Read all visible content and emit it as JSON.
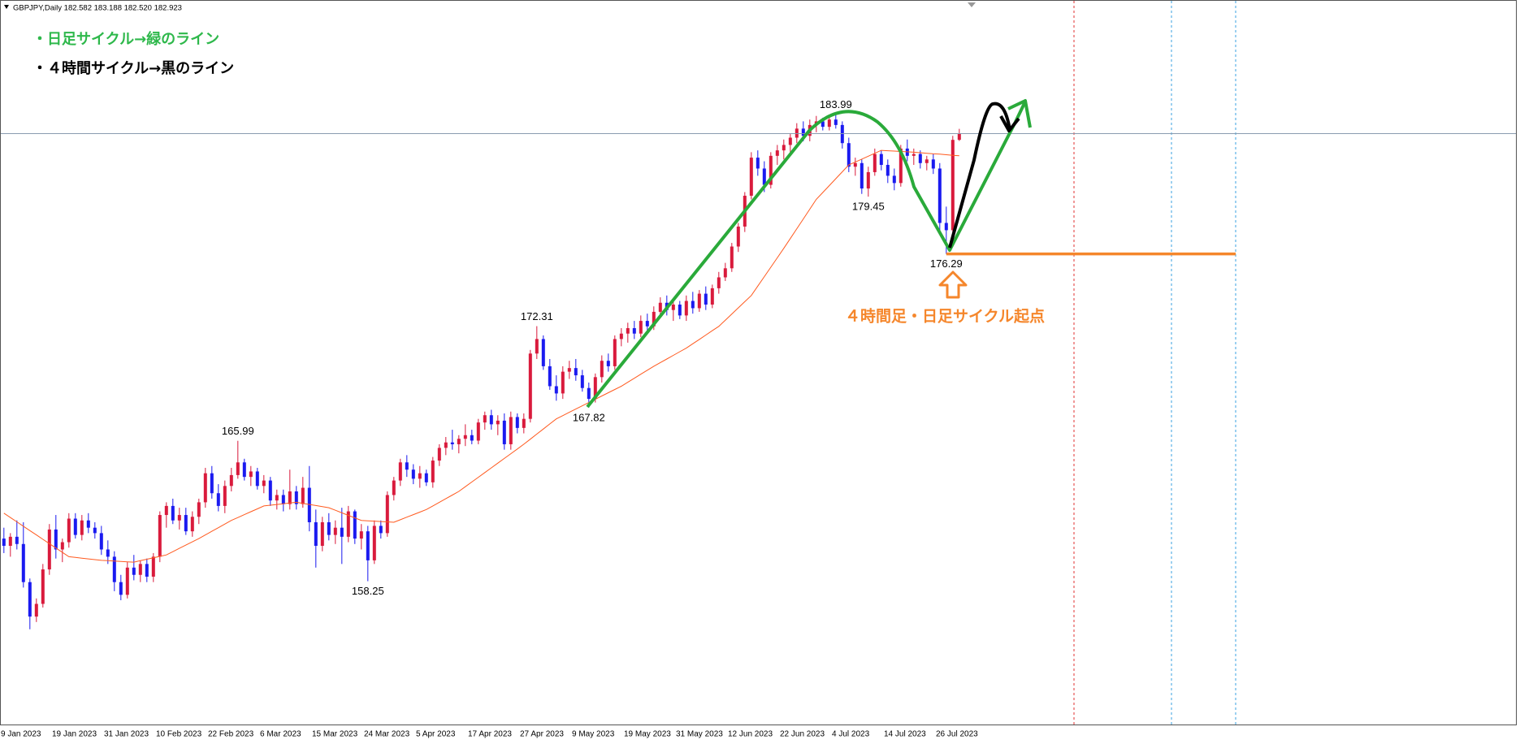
{
  "chart_data": {
    "type": "candlestick",
    "header": "GBPJPY,Daily  182.582 183.188 182.520 182.923",
    "notes": [
      "・日足サイクル→緑のライン",
      "・４時間サイクル→黒のライン"
    ],
    "callout": "４時間足・日足サイクル起点",
    "up_color": "#d91a3c",
    "down_color": "#1a1af0",
    "ylim": [
      150.35,
      190.29
    ],
    "categories": [
      "9 Jan 2023",
      null,
      null,
      null,
      null,
      null,
      null,
      null,
      "19 Jan 2023",
      null,
      null,
      null,
      null,
      null,
      null,
      null,
      "31 Jan 2023",
      null,
      null,
      null,
      null,
      null,
      null,
      null,
      "10 Feb 2023",
      null,
      null,
      null,
      null,
      null,
      null,
      null,
      "22 Feb 2023",
      null,
      null,
      null,
      null,
      null,
      null,
      null,
      "6 Mar 2023",
      null,
      null,
      null,
      null,
      null,
      null,
      null,
      "15 Mar 2023",
      null,
      null,
      null,
      null,
      null,
      null,
      null,
      "24 Mar 2023",
      null,
      null,
      null,
      null,
      null,
      null,
      null,
      "5 Apr 2023",
      null,
      null,
      null,
      null,
      null,
      null,
      null,
      "17 Apr 2023",
      null,
      null,
      null,
      null,
      null,
      null,
      null,
      "27 Apr 2023",
      null,
      null,
      null,
      null,
      null,
      null,
      null,
      "9 May 2023",
      null,
      null,
      null,
      null,
      null,
      null,
      null,
      "19 May 2023",
      null,
      null,
      null,
      null,
      null,
      null,
      null,
      "31 May 2023",
      null,
      null,
      null,
      null,
      null,
      null,
      null,
      "12 Jun 2023",
      null,
      null,
      null,
      null,
      null,
      null,
      null,
      "22 Jun 2023",
      null,
      null,
      null,
      null,
      null,
      null,
      null,
      "4 Jul 2023",
      null,
      null,
      null,
      null,
      null,
      null,
      null,
      "14 Jul 2023",
      null,
      null,
      null,
      null,
      null,
      null,
      null,
      "26 Jul 2023",
      null,
      null,
      null
    ],
    "ohlc": [
      [
        160.6,
        161.2,
        159.8,
        160.2
      ],
      [
        160.2,
        160.9,
        159.6,
        160.7
      ],
      [
        160.7,
        161.6,
        160.0,
        160.3
      ],
      [
        160.3,
        161.5,
        157.9,
        158.2
      ],
      [
        158.2,
        158.4,
        155.6,
        156.3
      ],
      [
        156.3,
        157.3,
        156.0,
        157.0
      ],
      [
        157.0,
        159.2,
        156.8,
        158.9
      ],
      [
        158.9,
        161.4,
        158.6,
        161.1
      ],
      [
        161.1,
        161.9,
        159.5,
        160.0
      ],
      [
        160.0,
        160.6,
        159.3,
        160.4
      ],
      [
        160.4,
        162.0,
        160.1,
        161.7
      ],
      [
        161.7,
        162.0,
        160.6,
        160.8
      ],
      [
        160.8,
        161.9,
        160.5,
        161.6
      ],
      [
        161.6,
        162.0,
        160.9,
        161.2
      ],
      [
        161.2,
        161.5,
        160.6,
        160.9
      ],
      [
        160.9,
        161.3,
        159.7,
        160.0
      ],
      [
        160.0,
        160.5,
        159.2,
        159.6
      ],
      [
        159.6,
        159.9,
        157.7,
        158.2
      ],
      [
        158.2,
        158.6,
        157.2,
        157.5
      ],
      [
        157.5,
        159.3,
        157.3,
        159.0
      ],
      [
        159.0,
        159.7,
        158.3,
        158.6
      ],
      [
        158.6,
        159.4,
        158.2,
        159.2
      ],
      [
        159.2,
        159.5,
        158.2,
        158.5
      ],
      [
        158.5,
        159.8,
        158.2,
        159.6
      ],
      [
        159.6,
        162.1,
        159.3,
        161.9
      ],
      [
        161.9,
        162.6,
        161.2,
        162.4
      ],
      [
        162.4,
        162.8,
        161.4,
        161.6
      ],
      [
        161.6,
        162.3,
        161.1,
        161.9
      ],
      [
        161.9,
        162.3,
        160.8,
        161.0
      ],
      [
        161.0,
        162.1,
        160.7,
        161.8
      ],
      [
        161.8,
        162.8,
        161.4,
        162.6
      ],
      [
        162.6,
        164.5,
        162.3,
        164.2
      ],
      [
        164.2,
        164.6,
        162.8,
        163.1
      ],
      [
        163.1,
        163.6,
        162.1,
        162.4
      ],
      [
        162.4,
        163.8,
        162.0,
        163.5
      ],
      [
        163.5,
        164.5,
        163.2,
        164.1
      ],
      [
        164.1,
        165.99,
        163.9,
        164.8
      ],
      [
        164.8,
        165.0,
        163.8,
        164.0
      ],
      [
        164.0,
        164.6,
        163.5,
        164.3
      ],
      [
        164.3,
        164.5,
        163.3,
        163.5
      ],
      [
        163.5,
        164.1,
        163.1,
        163.8
      ],
      [
        163.8,
        164.0,
        162.4,
        162.7
      ],
      [
        162.7,
        163.3,
        162.2,
        163.0
      ],
      [
        163.0,
        163.3,
        162.1,
        162.5
      ],
      [
        162.5,
        164.4,
        162.2,
        163.2
      ],
      [
        163.2,
        163.5,
        162.2,
        162.5
      ],
      [
        162.5,
        164.0,
        162.3,
        163.4
      ],
      [
        163.4,
        164.6,
        161.0,
        161.5
      ],
      [
        161.5,
        162.2,
        159.0,
        160.2
      ],
      [
        160.2,
        161.8,
        159.9,
        161.5
      ],
      [
        161.5,
        162.0,
        160.5,
        160.8
      ],
      [
        160.8,
        161.6,
        160.3,
        161.2
      ],
      [
        161.2,
        162.3,
        159.2,
        160.7
      ],
      [
        160.7,
        162.4,
        160.4,
        162.1
      ],
      [
        162.1,
        162.2,
        160.3,
        160.6
      ],
      [
        160.6,
        161.4,
        160.0,
        161.0
      ],
      [
        161.0,
        161.3,
        158.25,
        159.4
      ],
      [
        159.4,
        161.6,
        159.2,
        161.3
      ],
      [
        161.3,
        161.6,
        160.6,
        160.9
      ],
      [
        160.9,
        163.2,
        160.7,
        163.0
      ],
      [
        163.0,
        164.0,
        162.7,
        163.8
      ],
      [
        163.8,
        165.0,
        163.5,
        164.8
      ],
      [
        164.8,
        165.2,
        164.0,
        164.4
      ],
      [
        164.4,
        164.7,
        163.6,
        163.9
      ],
      [
        163.9,
        164.6,
        163.4,
        164.2
      ],
      [
        164.2,
        164.4,
        163.5,
        163.7
      ],
      [
        163.7,
        165.1,
        163.4,
        164.9
      ],
      [
        164.9,
        165.8,
        164.6,
        165.6
      ],
      [
        165.6,
        166.2,
        165.2,
        165.9
      ],
      [
        165.9,
        166.6,
        165.5,
        165.8
      ],
      [
        165.8,
        166.3,
        165.3,
        166.1
      ],
      [
        166.1,
        166.9,
        165.7,
        166.3
      ],
      [
        166.3,
        166.6,
        165.8,
        166.0
      ],
      [
        166.0,
        167.2,
        165.8,
        167.0
      ],
      [
        167.0,
        167.6,
        166.6,
        167.4
      ],
      [
        167.4,
        167.7,
        166.6,
        166.9
      ],
      [
        166.9,
        167.4,
        166.3,
        167.1
      ],
      [
        167.1,
        167.5,
        165.5,
        165.8
      ],
      [
        165.8,
        167.6,
        165.5,
        167.3
      ],
      [
        167.3,
        167.5,
        166.4,
        166.7
      ],
      [
        166.7,
        167.5,
        166.4,
        167.2
      ],
      [
        167.2,
        171.0,
        167.0,
        170.8
      ],
      [
        170.8,
        172.31,
        170.5,
        171.6
      ],
      [
        171.6,
        171.8,
        169.9,
        170.1
      ],
      [
        170.1,
        170.5,
        168.8,
        169.0
      ],
      [
        169.0,
        169.6,
        168.2,
        168.6
      ],
      [
        168.6,
        170.1,
        168.3,
        169.8
      ],
      [
        169.8,
        170.4,
        169.4,
        170.0
      ],
      [
        170.0,
        170.5,
        169.3,
        169.6
      ],
      [
        169.6,
        169.9,
        168.7,
        168.9
      ],
      [
        168.9,
        169.2,
        167.82,
        168.3
      ],
      [
        168.3,
        169.7,
        168.1,
        169.5
      ],
      [
        169.5,
        170.7,
        169.2,
        170.4
      ],
      [
        170.4,
        170.8,
        169.8,
        170.1
      ],
      [
        170.1,
        171.8,
        169.9,
        171.6
      ],
      [
        171.6,
        172.2,
        171.2,
        171.9
      ],
      [
        171.9,
        172.5,
        171.4,
        172.2
      ],
      [
        172.2,
        172.6,
        171.6,
        171.9
      ],
      [
        171.9,
        172.9,
        171.7,
        172.6
      ],
      [
        172.6,
        173.0,
        172.0,
        172.3
      ],
      [
        172.3,
        173.4,
        172.1,
        173.1
      ],
      [
        173.1,
        173.9,
        172.8,
        173.6
      ],
      [
        173.6,
        174.0,
        172.9,
        173.2
      ],
      [
        173.2,
        173.8,
        172.6,
        173.5
      ],
      [
        173.5,
        173.7,
        172.7,
        172.9
      ],
      [
        172.9,
        174.0,
        172.6,
        173.7
      ],
      [
        173.7,
        174.2,
        173.0,
        173.3
      ],
      [
        173.3,
        174.3,
        173.1,
        174.1
      ],
      [
        174.1,
        174.5,
        173.2,
        173.5
      ],
      [
        173.5,
        174.6,
        173.3,
        174.4
      ],
      [
        174.4,
        175.3,
        174.1,
        175.0
      ],
      [
        175.0,
        175.8,
        174.8,
        175.5
      ],
      [
        175.5,
        176.9,
        175.3,
        176.7
      ],
      [
        176.7,
        178.0,
        176.4,
        177.8
      ],
      [
        177.8,
        179.7,
        177.5,
        179.5
      ],
      [
        179.5,
        181.9,
        179.3,
        181.6
      ],
      [
        181.6,
        182.0,
        180.6,
        181.0
      ],
      [
        181.0,
        181.4,
        179.7,
        180.1
      ],
      [
        180.1,
        181.9,
        179.9,
        181.7
      ],
      [
        181.7,
        182.3,
        181.2,
        182.0
      ],
      [
        182.0,
        182.6,
        181.5,
        182.3
      ],
      [
        182.3,
        182.9,
        181.9,
        182.7
      ],
      [
        182.7,
        183.5,
        182.4,
        183.2
      ],
      [
        183.2,
        183.6,
        182.5,
        182.8
      ],
      [
        182.8,
        183.7,
        182.5,
        183.4
      ],
      [
        183.4,
        183.9,
        183.0,
        183.6
      ],
      [
        183.6,
        183.8,
        183.1,
        183.3
      ],
      [
        183.3,
        183.9,
        183.1,
        183.7
      ],
      [
        183.7,
        183.99,
        183.2,
        183.4
      ],
      [
        183.4,
        183.6,
        182.1,
        182.4
      ],
      [
        182.4,
        182.7,
        180.8,
        181.1
      ],
      [
        181.1,
        181.6,
        180.6,
        181.3
      ],
      [
        181.3,
        181.5,
        179.6,
        179.9
      ],
      [
        179.9,
        181.1,
        179.45,
        180.8
      ],
      [
        180.8,
        182.1,
        180.6,
        181.8
      ],
      [
        181.8,
        182.0,
        180.9,
        181.2
      ],
      [
        181.2,
        181.5,
        180.2,
        180.6
      ],
      [
        180.6,
        181.0,
        179.8,
        180.2
      ],
      [
        180.2,
        182.3,
        180.0,
        182.1
      ],
      [
        182.1,
        182.6,
        181.4,
        181.7
      ],
      [
        181.7,
        182.1,
        181.2,
        181.8
      ],
      [
        181.8,
        182.0,
        181.0,
        181.3
      ],
      [
        181.3,
        181.7,
        180.9,
        181.5
      ],
      [
        181.5,
        181.8,
        180.7,
        181.0
      ],
      [
        181.0,
        181.3,
        177.4,
        178.0
      ],
      [
        178.0,
        178.9,
        176.29,
        177.6
      ],
      [
        177.6,
        182.8,
        177.4,
        182.58
      ],
      [
        182.582,
        183.188,
        182.52,
        182.923
      ]
    ],
    "ma": {
      "color": "#ff5a1f",
      "values": [
        162.0,
        161.76,
        161.52,
        161.28,
        161.04,
        160.8,
        160.56,
        160.32,
        160.08,
        159.84,
        159.6,
        159.56,
        159.52,
        159.48,
        159.44,
        159.4,
        159.38,
        159.36,
        159.34,
        159.32,
        159.3,
        159.38,
        159.46,
        159.54,
        159.62,
        159.7,
        159.88,
        160.06,
        160.24,
        160.42,
        160.6,
        160.8,
        161.0,
        161.2,
        161.4,
        161.6,
        161.76,
        161.92,
        162.08,
        162.24,
        162.4,
        162.44,
        162.48,
        162.52,
        162.56,
        162.6,
        162.54,
        162.48,
        162.42,
        162.36,
        162.3,
        162.16,
        162.02,
        161.88,
        161.74,
        161.6,
        161.58,
        161.56,
        161.54,
        161.52,
        161.5,
        161.64,
        161.78,
        161.92,
        162.06,
        162.2,
        162.4,
        162.6,
        162.8,
        163.0,
        163.2,
        163.46,
        163.72,
        163.98,
        164.24,
        164.5,
        164.76,
        165.02,
        165.28,
        165.54,
        165.8,
        166.08,
        166.36,
        166.64,
        166.92,
        167.2,
        167.38,
        167.56,
        167.74,
        167.92,
        168.1,
        168.28,
        168.46,
        168.64,
        168.82,
        169.0,
        169.22,
        169.44,
        169.66,
        169.88,
        170.1,
        170.3,
        170.5,
        170.7,
        170.9,
        171.1,
        171.34,
        171.58,
        171.82,
        172.06,
        172.3,
        172.64,
        172.98,
        173.32,
        173.66,
        174.0,
        174.52,
        175.04,
        175.56,
        176.08,
        176.6,
        177.14,
        177.68,
        178.22,
        178.76,
        179.3,
        179.68,
        180.06,
        180.44,
        180.82,
        181.2,
        181.36,
        181.52,
        181.68,
        181.84,
        182.0,
        181.98,
        181.96,
        181.94,
        181.92,
        181.9,
        181.87,
        181.84,
        181.81,
        181.79,
        181.76,
        181.73,
        181.7
      ]
    },
    "annotations": [
      165.99,
      158.25,
      172.31,
      167.82,
      183.99,
      179.45,
      176.29
    ]
  }
}
